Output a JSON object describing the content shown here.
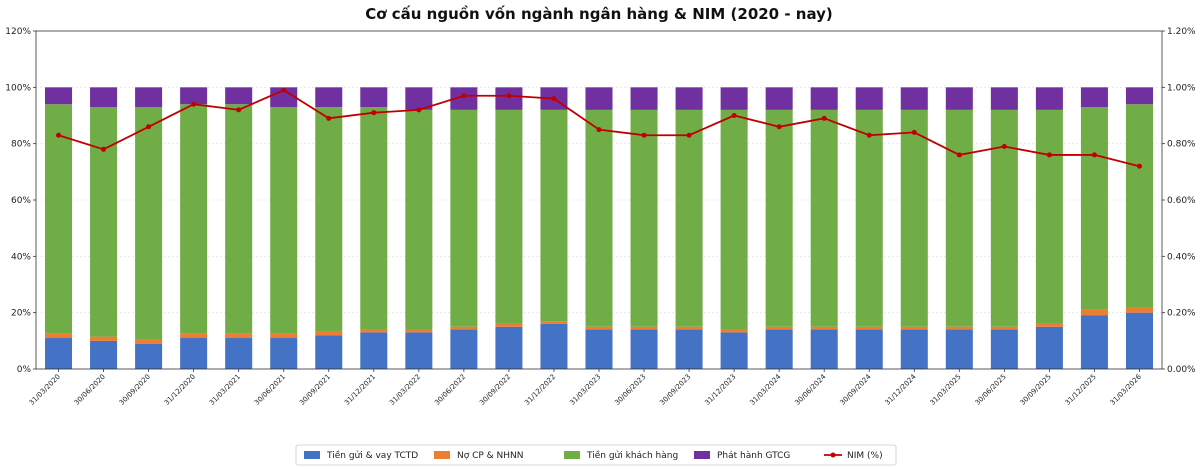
{
  "chart_data": {
    "type": "bar",
    "stacked": true,
    "title": "Cơ cấu nguồn vốn ngành ngân hàng & NIM (2020 - nay)",
    "categories": [
      "31/03/2020",
      "30/06/2020",
      "30/09/2020",
      "31/12/2020",
      "31/03/2021",
      "30/06/2021",
      "30/09/2021",
      "31/12/2021",
      "31/03/2022",
      "30/06/2022",
      "30/09/2022",
      "31/12/2022",
      "31/03/2023",
      "30/06/2023",
      "30/09/2023",
      "31/12/2023",
      "31/03/2024",
      "30/06/2024",
      "30/09/2024",
      "31/12/2024",
      "31/03/2025",
      "30/06/2025",
      "30/09/2025",
      "31/12/2025",
      "31/03/2026"
    ],
    "series": [
      {
        "name": "Tiền gửi & vay TCTD",
        "color": "#4472C4",
        "values": [
          11,
          10,
          9,
          11,
          11,
          11,
          12,
          13,
          13,
          14,
          15,
          16,
          14,
          14,
          14,
          13,
          14,
          14,
          14,
          14,
          14,
          14,
          15,
          19,
          20
        ]
      },
      {
        "name": "Nợ CP & NHNN",
        "color": "#ED7D31",
        "values": [
          1.5,
          1.5,
          1.5,
          1.5,
          1.5,
          1.5,
          1.5,
          1,
          1,
          1,
          1,
          1,
          1,
          1,
          1,
          1,
          1,
          1,
          1,
          1,
          1,
          1,
          1,
          2,
          2
        ]
      },
      {
        "name": "Tiền gửi khách hàng",
        "color": "#70AD47",
        "values": [
          81.5,
          81.5,
          82.5,
          81.5,
          81.5,
          80.5,
          79.5,
          79,
          78,
          77,
          76,
          75,
          77,
          77,
          77,
          78,
          77,
          77,
          77,
          77,
          77,
          77,
          76,
          72,
          72
        ]
      },
      {
        "name": "Phát hành GTCG",
        "color": "#7030A0",
        "values": [
          6,
          7,
          7,
          6,
          6,
          7,
          7,
          7,
          8,
          8,
          8,
          8,
          8,
          8,
          8,
          8,
          8,
          8,
          8,
          8,
          8,
          8,
          8,
          7,
          6
        ]
      }
    ],
    "line_series": {
      "name": "NIM (%)",
      "color": "#C00000",
      "axis": "right",
      "values": [
        0.83,
        0.78,
        0.86,
        0.94,
        0.92,
        0.99,
        0.89,
        0.91,
        0.92,
        0.97,
        0.97,
        0.96,
        0.85,
        0.83,
        0.83,
        0.9,
        0.86,
        0.89,
        0.83,
        0.84,
        0.76,
        0.79,
        0.76,
        0.76,
        0.72
      ]
    },
    "y_left": {
      "ylim": [
        0,
        120
      ],
      "ticks": [
        "0%",
        "20%",
        "40%",
        "60%",
        "80%",
        "100%",
        "120%"
      ],
      "tick_values": [
        0,
        20,
        40,
        60,
        80,
        100,
        120
      ]
    },
    "y_right": {
      "ylim": [
        0,
        1.2
      ],
      "ticks": [
        "0.00%",
        "0.20%",
        "0.40%",
        "0.60%",
        "0.80%",
        "1.00%",
        "1.20%"
      ],
      "tick_values": [
        0,
        0.2,
        0.4,
        0.6,
        0.8,
        1.0,
        1.2
      ]
    },
    "grid": true,
    "legend_position": "bottom-center"
  }
}
